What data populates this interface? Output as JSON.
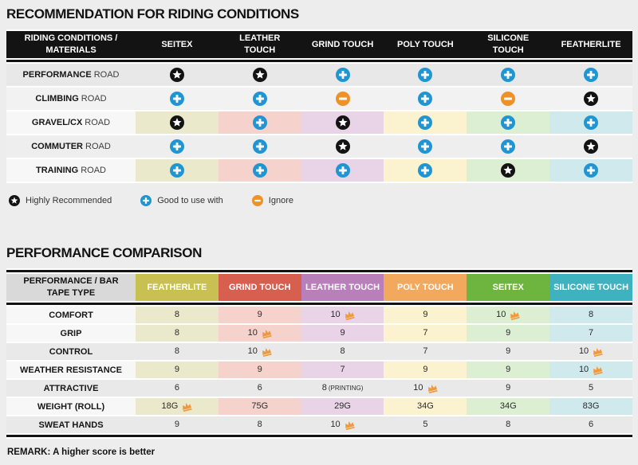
{
  "colors": {
    "page_bg": "#ededed",
    "black": "#131313",
    "blue_plus": "#2095d2",
    "orange_minus": "#ee9227",
    "crown": "#f0993a",
    "column_light": [
      "#ebe9cc",
      "#f5d3cc",
      "#e9d3e7",
      "#fbf2cf",
      "#ddefd2",
      "#cfe9ec"
    ]
  },
  "section1": {
    "title": "RECOMMENDATION FOR RIDING CONDITIONS",
    "table": {
      "header_label": "RIDING CONDITIONS / MATERIALS",
      "columns": [
        "SEITEX",
        "LEATHER TOUCH",
        "GRIND TOUCH",
        "POLY TOUCH",
        "SILICONE TOUCH",
        "FEATHERLITE"
      ],
      "rows": [
        {
          "label_bold": "PERFORMANCE",
          "label_rest": "ROAD",
          "style": "r-dark",
          "cells": [
            "star",
            "star",
            "plus",
            "plus",
            "plus",
            "plus"
          ]
        },
        {
          "label_bold": "CLIMBING",
          "label_rest": "ROAD",
          "style": "r-light",
          "cells": [
            "plus",
            "plus",
            "minus",
            "plus",
            "minus",
            "star"
          ]
        },
        {
          "label_bold": "GRAVEL/CX",
          "label_rest": "ROAD",
          "style": "r-colored",
          "cells": [
            "star",
            "plus",
            "star",
            "plus",
            "plus",
            "plus"
          ]
        },
        {
          "label_bold": "COMMUTER",
          "label_rest": "ROAD",
          "style": "r-mid",
          "cells": [
            "plus",
            "plus",
            "star",
            "plus",
            "plus",
            "star"
          ]
        },
        {
          "label_bold": "TRAINING",
          "label_rest": "ROAD",
          "style": "r-colored",
          "cells": [
            "plus",
            "plus",
            "plus",
            "plus",
            "star",
            "plus"
          ]
        }
      ]
    },
    "legend": [
      {
        "icon": "star",
        "label": "Highly Recommended"
      },
      {
        "icon": "plus",
        "label": "Good to use with"
      },
      {
        "icon": "minus",
        "label": "Ignore"
      }
    ]
  },
  "section2": {
    "title": "PERFORMANCE COMPARISON",
    "table": {
      "header_label": "PERFORMANCE / BAR TAPE TYPE",
      "columns": [
        {
          "label": "FEATHERLITE",
          "color": "#c8c051"
        },
        {
          "label": "GRIND TOUCH",
          "color": "#d75f50"
        },
        {
          "label": "LEATHER TOUCH",
          "color": "#b97fbb"
        },
        {
          "label": "POLY TOUCH",
          "color": "#f2a95d"
        },
        {
          "label": "SEITEX",
          "color": "#6eb53f"
        },
        {
          "label": "SILICONE TOUCH",
          "color": "#3eb3bf"
        }
      ],
      "rows": [
        {
          "label": "COMFORT",
          "style": "colored2",
          "cells": [
            {
              "v": "8"
            },
            {
              "v": "9"
            },
            {
              "v": "10",
              "crown": true
            },
            {
              "v": "9"
            },
            {
              "v": "10",
              "crown": true
            },
            {
              "v": "8"
            }
          ],
          "style_note": "gray"
        },
        {
          "label": "GRIP",
          "style": "colored2",
          "cells": [
            {
              "v": "8"
            },
            {
              "v": "10",
              "crown": true
            },
            {
              "v": "9"
            },
            {
              "v": "7"
            },
            {
              "v": "9"
            },
            {
              "v": "7"
            }
          ]
        },
        {
          "label": "CONTROL",
          "style": "gray2",
          "cells": [
            {
              "v": "8"
            },
            {
              "v": "10",
              "crown": true
            },
            {
              "v": "8"
            },
            {
              "v": "7"
            },
            {
              "v": "9"
            },
            {
              "v": "10",
              "crown": true
            }
          ]
        },
        {
          "label": "WEATHER RESISTANCE",
          "style": "colored2",
          "cells": [
            {
              "v": "9"
            },
            {
              "v": "9"
            },
            {
              "v": "7"
            },
            {
              "v": "9"
            },
            {
              "v": "9"
            },
            {
              "v": "10",
              "crown": true
            }
          ]
        },
        {
          "label": "ATTRACTIVE",
          "style": "gray2",
          "cells": [
            {
              "v": "6"
            },
            {
              "v": "6"
            },
            {
              "v": "8",
              "suffix": "(PRINTING)"
            },
            {
              "v": "10",
              "crown": true
            },
            {
              "v": "9"
            },
            {
              "v": "5"
            }
          ]
        },
        {
          "label": "WEIGHT (ROLL)",
          "style": "colored2",
          "cells": [
            {
              "v": "18G",
              "crown": true
            },
            {
              "v": "75G"
            },
            {
              "v": "29G"
            },
            {
              "v": "34G"
            },
            {
              "v": "34G"
            },
            {
              "v": "83G"
            }
          ]
        },
        {
          "label": "SWEAT HANDS",
          "style": "gray2",
          "cells": [
            {
              "v": "9"
            },
            {
              "v": "8"
            },
            {
              "v": "10",
              "crown": true
            },
            {
              "v": "5"
            },
            {
              "v": "8"
            },
            {
              "v": "6"
            }
          ]
        }
      ]
    },
    "remark": "REMARK: A higher score is better"
  },
  "chart_data": [
    {
      "type": "table",
      "title": "RECOMMENDATION FOR RIDING CONDITIONS",
      "columns": [
        "RIDING CONDITIONS / MATERIALS",
        "SEITEX",
        "LEATHER TOUCH",
        "GRIND TOUCH",
        "POLY TOUCH",
        "SILICONE TOUCH",
        "FEATHERLITE"
      ],
      "legend": {
        "star": "Highly Recommended",
        "plus": "Good to use with",
        "minus": "Ignore"
      },
      "rows": [
        [
          "PERFORMANCE ROAD",
          "star",
          "star",
          "plus",
          "plus",
          "plus",
          "plus"
        ],
        [
          "CLIMBING ROAD",
          "plus",
          "plus",
          "minus",
          "plus",
          "minus",
          "star"
        ],
        [
          "GRAVEL/CX ROAD",
          "star",
          "plus",
          "star",
          "plus",
          "plus",
          "plus"
        ],
        [
          "COMMUTER ROAD",
          "plus",
          "plus",
          "star",
          "plus",
          "plus",
          "star"
        ],
        [
          "TRAINING ROAD",
          "plus",
          "plus",
          "plus",
          "plus",
          "star",
          "plus"
        ]
      ]
    },
    {
      "type": "table",
      "title": "PERFORMANCE COMPARISON",
      "columns": [
        "PERFORMANCE / BAR TAPE TYPE",
        "FEATHERLITE",
        "GRIND TOUCH",
        "LEATHER TOUCH",
        "POLY TOUCH",
        "SEITEX",
        "SILICONE TOUCH"
      ],
      "note": "crown = best in row; REMARK: A higher score is better",
      "rows": [
        [
          "COMFORT",
          "8",
          "9",
          "10 crown",
          "9",
          "10 crown",
          "8"
        ],
        [
          "GRIP",
          "8",
          "10 crown",
          "9",
          "7",
          "9",
          "7"
        ],
        [
          "CONTROL",
          "8",
          "10 crown",
          "8",
          "7",
          "9",
          "10 crown"
        ],
        [
          "WEATHER RESISTANCE",
          "9",
          "9",
          "7",
          "9",
          "9",
          "10 crown"
        ],
        [
          "ATTRACTIVE",
          "6",
          "6",
          "8 (PRINTING)",
          "10 crown",
          "9",
          "5"
        ],
        [
          "WEIGHT (ROLL)",
          "18G crown",
          "75G",
          "29G",
          "34G",
          "34G",
          "83G"
        ],
        [
          "SWEAT HANDS",
          "9",
          "8",
          "10 crown",
          "5",
          "8",
          "6"
        ]
      ]
    }
  ]
}
